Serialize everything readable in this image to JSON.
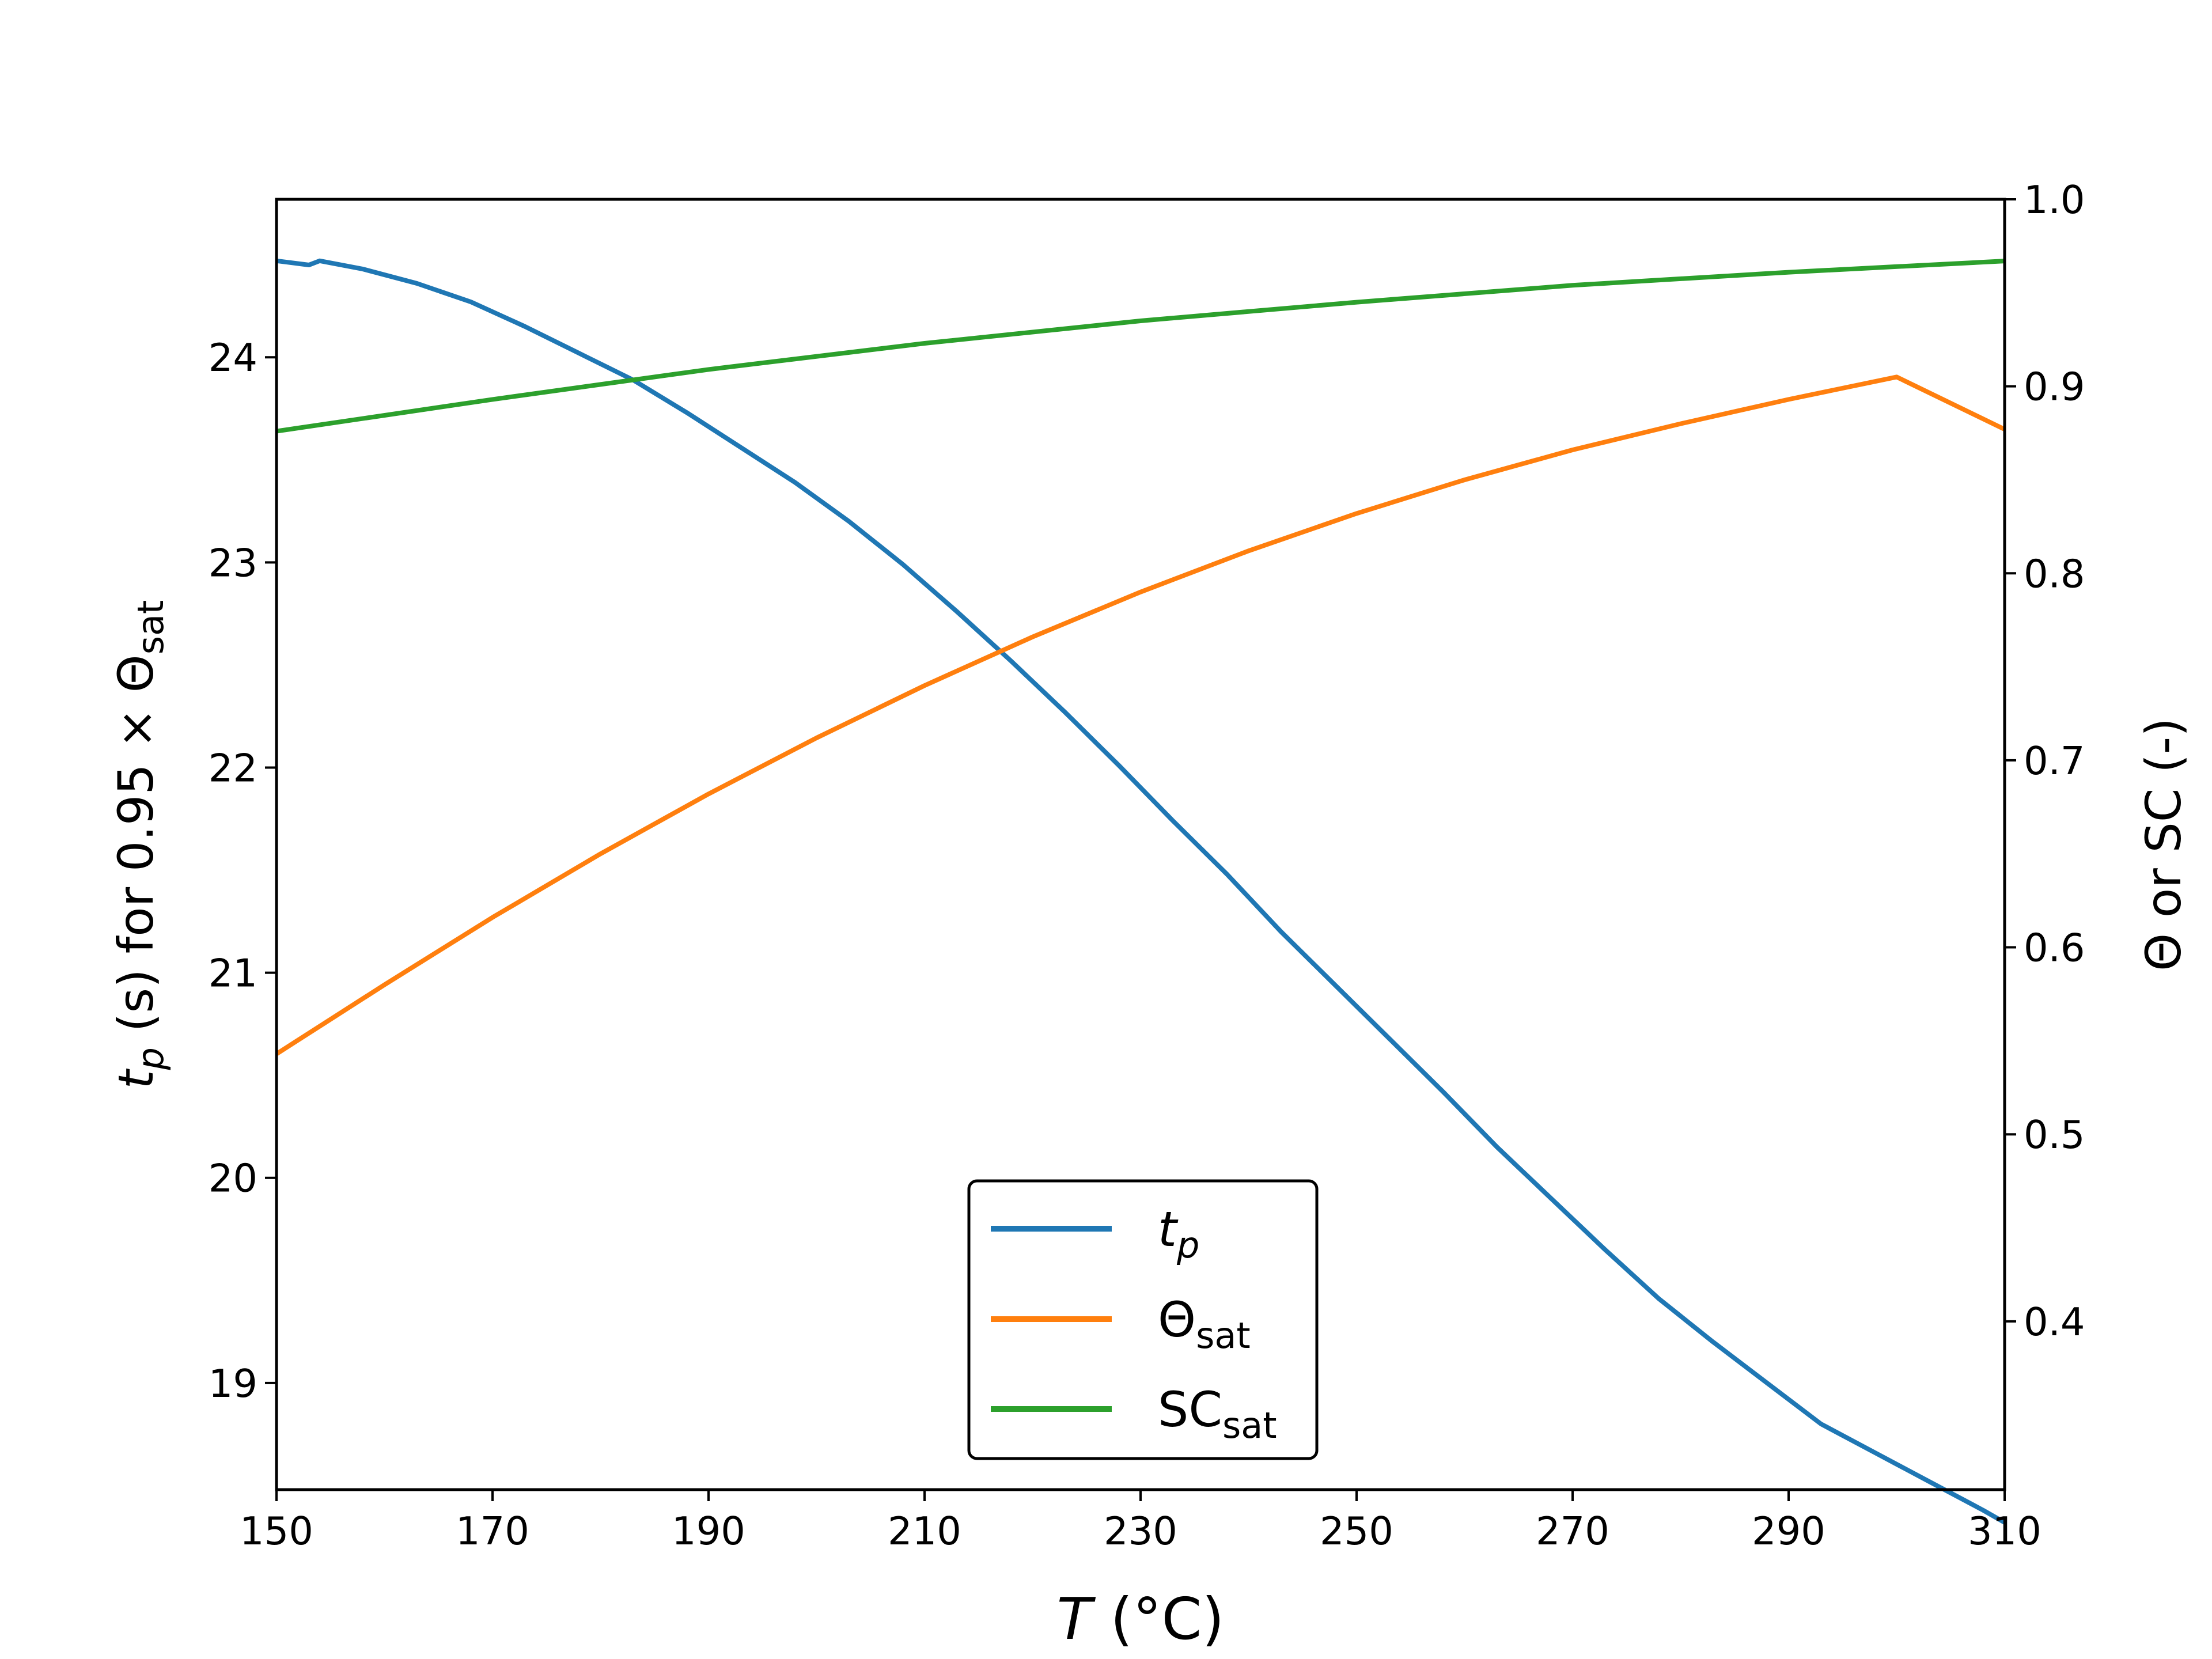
{
  "chart_data": {
    "type": "line",
    "xlabel": {
      "main": "T",
      "rest": " (°C)"
    },
    "ylabel_left": {
      "t": "t",
      "t_sub": "p",
      "mid": " (s) for 0.95 × Θ",
      "sub": "sat"
    },
    "ylabel_right": "Θ or SC (-)",
    "xlim": [
      150,
      310
    ],
    "ylim_left": [
      18.48,
      24.77
    ],
    "ylim_right": [
      0.31,
      1.0
    ],
    "x_ticks": [
      150,
      170,
      190,
      210,
      230,
      250,
      270,
      290,
      310
    ],
    "y_left_ticks": [
      19,
      20,
      21,
      22,
      23,
      24
    ],
    "y_right_ticks": [
      "0.4",
      "0.5",
      "0.6",
      "0.7",
      "0.8",
      "0.9",
      "1.0"
    ],
    "grid": false,
    "legend_position": "lower-center",
    "series": [
      {
        "name": "t",
        "name_sub": "p",
        "name_italic": true,
        "axis": "left",
        "color": "#1f77b4",
        "x": [
          150,
          153,
          154,
          158,
          163,
          168,
          173,
          178,
          183,
          188,
          193,
          198,
          203,
          208,
          213,
          218,
          223,
          228,
          233,
          238,
          243,
          248,
          253,
          258,
          263,
          268,
          273,
          278,
          283,
          288,
          293,
          298,
          303,
          308,
          310
        ],
        "y": [
          24.47,
          24.45,
          24.47,
          24.43,
          24.36,
          24.27,
          24.15,
          24.02,
          23.89,
          23.73,
          23.56,
          23.39,
          23.2,
          22.99,
          22.76,
          22.52,
          22.27,
          22.01,
          21.74,
          21.48,
          21.2,
          20.94,
          20.68,
          20.42,
          20.15,
          19.9,
          19.65,
          19.41,
          19.2,
          19.0,
          18.8,
          18.66,
          18.52,
          18.38,
          18.32
        ]
      },
      {
        "name": "Θ",
        "name_sub": "sat",
        "axis": "right",
        "color": "#ff7f0e",
        "x": [
          150,
          160,
          170,
          180,
          190,
          200,
          210,
          220,
          230,
          240,
          250,
          260,
          270,
          280,
          290,
          300,
          310
        ],
        "y": [
          0.543,
          0.58,
          0.616,
          0.65,
          0.682,
          0.712,
          0.74,
          0.766,
          0.79,
          0.812,
          0.832,
          0.85,
          0.866,
          0.88,
          0.893,
          0.905,
          0.877
        ]
      },
      {
        "name": "SC",
        "name_sub": "sat",
        "axis": "right",
        "color": "#2ca02c",
        "x": [
          150,
          170,
          190,
          210,
          230,
          250,
          270,
          290,
          310
        ],
        "y": [
          0.876,
          0.893,
          0.909,
          0.923,
          0.935,
          0.945,
          0.954,
          0.961,
          0.967
        ]
      }
    ]
  }
}
